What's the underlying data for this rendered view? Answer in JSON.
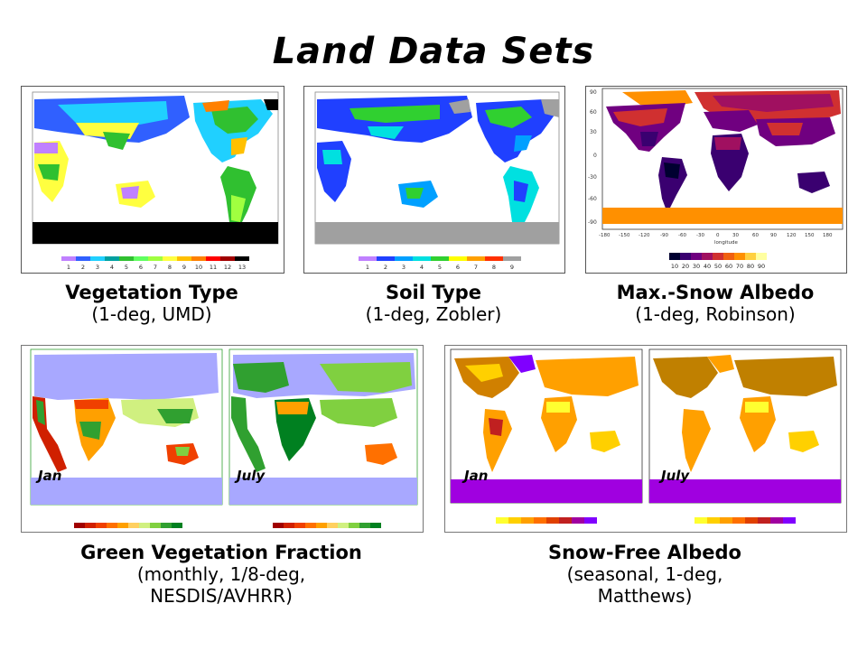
{
  "slide": {
    "title": "Land Data Sets"
  },
  "panels": {
    "vegetation": {
      "title": "Vegetation Type",
      "subtitle": "(1-deg, UMD)",
      "legend_labels": [
        "1",
        "2",
        "3",
        "4",
        "5",
        "6",
        "7",
        "8",
        "9",
        "10",
        "11",
        "12",
        "13"
      ]
    },
    "soil": {
      "title": "Soil Type",
      "subtitle": "(1-deg, Zobler)",
      "legend_labels": [
        "1",
        "2",
        "3",
        "4",
        "5",
        "6",
        "7",
        "8",
        "9"
      ]
    },
    "albedo": {
      "title": "Max.-Snow Albedo",
      "subtitle": "(1-deg, Robinson)",
      "xaxis_label": "longitude",
      "legend_labels": [
        "10",
        "20",
        "30",
        "40",
        "50",
        "60",
        "70",
        "80",
        "90"
      ]
    },
    "greenveg": {
      "title": "Green Vegetation Fraction",
      "subtitle_line1": "(monthly, 1/8-deg,",
      "subtitle_line2": "NESDIS/AVHRR)",
      "month_left": "Jan",
      "month_right": "July"
    },
    "snowfree": {
      "title": "Snow-Free Albedo",
      "subtitle_line1": "(seasonal, 1-deg,",
      "subtitle_line2": "Matthews)",
      "month_left": "Jan",
      "month_right": "July"
    }
  },
  "colors": {
    "veg": [
      "#c080ff",
      "#3060ff",
      "#20d0ff",
      "#00a0a0",
      "#30c030",
      "#60ff60",
      "#a0ff40",
      "#ffff40",
      "#ffc000",
      "#ff8000",
      "#ff0000",
      "#a00000",
      "#000000"
    ],
    "soil": [
      "#c080ff",
      "#2040ff",
      "#00a0ff",
      "#00e0e0",
      "#30d030",
      "#ffff00",
      "#ffa000",
      "#ff3000",
      "#a0a0a0"
    ],
    "albedo": [
      "#000030",
      "#3a0070",
      "#700080",
      "#a01060",
      "#d03030",
      "#f06010",
      "#ff9000",
      "#ffd040",
      "#ffffa0"
    ],
    "gvf": [
      "#a00000",
      "#d02000",
      "#f04000",
      "#ff7000",
      "#ffa000",
      "#ffd060",
      "#d0f080",
      "#80d040",
      "#30a030",
      "#008020"
    ],
    "sfa": [
      "#ffff30",
      "#ffd000",
      "#ffa000",
      "#ff7000",
      "#e04000",
      "#c02020",
      "#a000a0",
      "#8000ff"
    ]
  }
}
